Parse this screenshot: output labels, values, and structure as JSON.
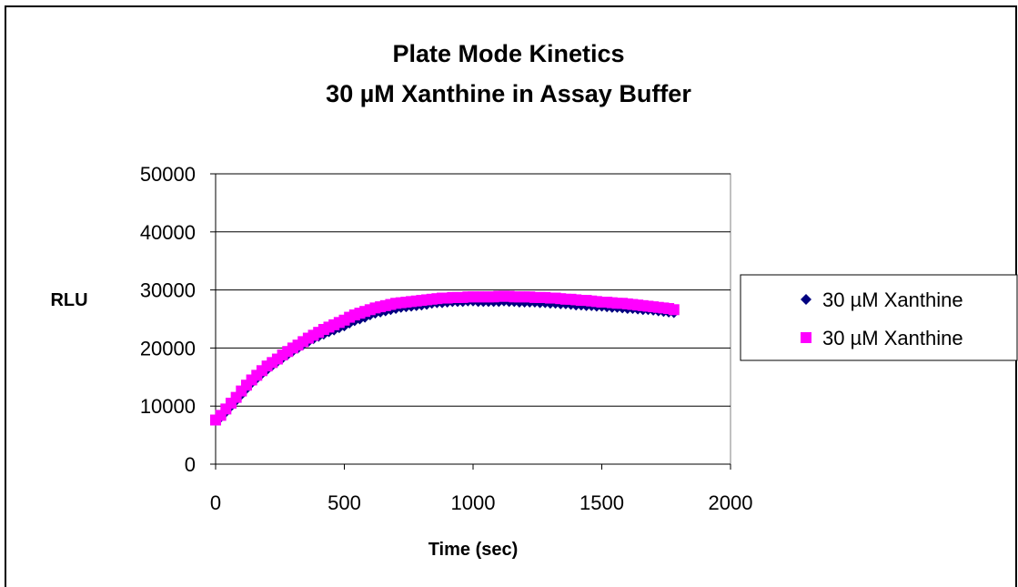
{
  "chart_data": {
    "type": "scatter",
    "title": [
      "Plate Mode Kinetics",
      "30 µM Xanthine in Assay Buffer"
    ],
    "xlabel": "Time (sec)",
    "ylabel": "RLU",
    "xlim": [
      0,
      2000
    ],
    "ylim": [
      0,
      50000
    ],
    "x_ticks": [
      "0",
      "500",
      "1000",
      "1500",
      "2000"
    ],
    "y_ticks": [
      "0",
      "10000",
      "20000",
      "30000",
      "40000",
      "50000"
    ],
    "grid": "horizontal",
    "legend_position": "right",
    "series": [
      {
        "name": "30 µM Xanthine",
        "marker": "diamond",
        "color": "#000080",
        "x": [
          0,
          20,
          40,
          60,
          80,
          100,
          120,
          140,
          160,
          180,
          200,
          220,
          240,
          260,
          280,
          300,
          320,
          340,
          360,
          380,
          400,
          420,
          440,
          460,
          480,
          500,
          520,
          540,
          560,
          580,
          600,
          620,
          640,
          660,
          680,
          700,
          720,
          740,
          760,
          780,
          800,
          820,
          840,
          860,
          880,
          900,
          920,
          940,
          960,
          980,
          1000,
          1020,
          1040,
          1060,
          1080,
          1100,
          1120,
          1140,
          1160,
          1180,
          1200,
          1220,
          1240,
          1260,
          1280,
          1300,
          1320,
          1340,
          1360,
          1380,
          1400,
          1420,
          1440,
          1460,
          1480,
          1500,
          1520,
          1540,
          1560,
          1580,
          1600,
          1620,
          1640,
          1660,
          1680,
          1700,
          1720,
          1740,
          1760,
          1780
        ],
        "y": [
          7500,
          8100,
          9000,
          10000,
          11000,
          12000,
          13000,
          14000,
          14800,
          15600,
          16300,
          17000,
          17700,
          18300,
          18900,
          19500,
          20000,
          20600,
          21100,
          21600,
          22000,
          22400,
          22800,
          23100,
          23500,
          23800,
          24300,
          24700,
          25000,
          25300,
          25700,
          26000,
          26200,
          26400,
          26600,
          26800,
          27000,
          27100,
          27200,
          27300,
          27400,
          27500,
          27700,
          27800,
          27800,
          27900,
          28000,
          28000,
          28000,
          28100,
          28100,
          28000,
          28000,
          28000,
          28000,
          28000,
          28100,
          28000,
          28000,
          27900,
          27900,
          27900,
          27900,
          27800,
          27800,
          27700,
          27700,
          27600,
          27600,
          27500,
          27400,
          27400,
          27300,
          27300,
          27200,
          27200,
          27100,
          27000,
          27000,
          26900,
          26800,
          26800,
          26700,
          26600,
          26600,
          26500,
          26400,
          26300,
          26200,
          26100
        ]
      },
      {
        "name": "30 µM Xanthine",
        "marker": "square",
        "color": "#FF00FF",
        "x": [
          0,
          20,
          40,
          60,
          80,
          100,
          120,
          140,
          160,
          180,
          200,
          220,
          240,
          260,
          280,
          300,
          320,
          340,
          360,
          380,
          400,
          420,
          440,
          460,
          480,
          500,
          520,
          540,
          560,
          580,
          600,
          620,
          640,
          660,
          680,
          700,
          720,
          740,
          760,
          780,
          800,
          820,
          840,
          860,
          880,
          900,
          920,
          940,
          960,
          980,
          1000,
          1020,
          1040,
          1060,
          1080,
          1100,
          1120,
          1140,
          1160,
          1180,
          1200,
          1220,
          1240,
          1260,
          1280,
          1300,
          1320,
          1340,
          1360,
          1380,
          1400,
          1420,
          1440,
          1460,
          1480,
          1500,
          1520,
          1540,
          1560,
          1580,
          1600,
          1620,
          1640,
          1660,
          1680,
          1700,
          1720,
          1740,
          1760,
          1780
        ],
        "y": [
          7600,
          8400,
          9500,
          10500,
          11500,
          12600,
          13600,
          14500,
          15300,
          16100,
          16900,
          17500,
          18100,
          18800,
          19400,
          20000,
          20500,
          21100,
          21700,
          22200,
          22700,
          23200,
          23600,
          24000,
          24400,
          24800,
          25300,
          25700,
          26000,
          26300,
          26600,
          26900,
          27100,
          27300,
          27500,
          27700,
          27800,
          27900,
          28000,
          28100,
          28200,
          28300,
          28400,
          28500,
          28600,
          28600,
          28700,
          28700,
          28700,
          28800,
          28800,
          28800,
          28800,
          28800,
          28800,
          28900,
          28900,
          28900,
          28800,
          28800,
          28800,
          28800,
          28700,
          28700,
          28700,
          28600,
          28600,
          28500,
          28400,
          28400,
          28300,
          28200,
          28200,
          28100,
          28000,
          27900,
          27900,
          27800,
          27700,
          27700,
          27600,
          27500,
          27400,
          27300,
          27200,
          27100,
          27000,
          26900,
          26800,
          26600
        ]
      }
    ]
  }
}
